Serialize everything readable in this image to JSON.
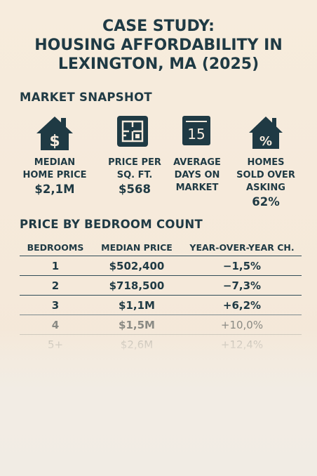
{
  "header": {
    "title_line1": "CASE STUDY:",
    "title_line2": "HOUSING AFFORDABILITY IN",
    "title_line3": "LEXINGTON, MA (2025)"
  },
  "snapshot": {
    "heading": "MARKET SNAPSHOT",
    "stats": [
      {
        "icon": "house-dollar-icon",
        "label_line1": "MEDIAN",
        "label_line2": "HOME PRICE",
        "label_line3": "",
        "value": "$2,1M"
      },
      {
        "icon": "floor-plan-icon",
        "label_line1": "PRICE PER",
        "label_line2": "SQ. FT.",
        "label_line3": "",
        "value": "$568"
      },
      {
        "icon": "calendar-icon",
        "icon_text": "15",
        "label_line1": "AVERAGE",
        "label_line2": "DAYS ON",
        "label_line3": "MARKET",
        "value": ""
      },
      {
        "icon": "house-percent-icon",
        "icon_text": "%",
        "label_line1": "HOMES",
        "label_line2": "SOLD OVER",
        "label_line3": "ASKING",
        "value": "62%"
      }
    ]
  },
  "bedrooms": {
    "heading": "PRICE BY BEDROOM COUNT",
    "columns": [
      "BEDROOMS",
      "MEDIAN PRICE",
      "YEAR-OVER-YEAR CH."
    ],
    "rows": [
      {
        "bedrooms": "1",
        "median_price": "$502,400",
        "yoy": "−1,5%"
      },
      {
        "bedrooms": "2",
        "median_price": "$718,500",
        "yoy": "−7,3%"
      },
      {
        "bedrooms": "3",
        "median_price": "$1,1M",
        "yoy": "+6,2%"
      },
      {
        "bedrooms": "4",
        "median_price": "$1,5M",
        "yoy": "+10,0%"
      },
      {
        "bedrooms": "5+",
        "median_price": "$2,6M",
        "yoy": "+12,4%"
      }
    ]
  },
  "colors": {
    "ink": "#1f3a44",
    "background": "#f6ebdd"
  }
}
